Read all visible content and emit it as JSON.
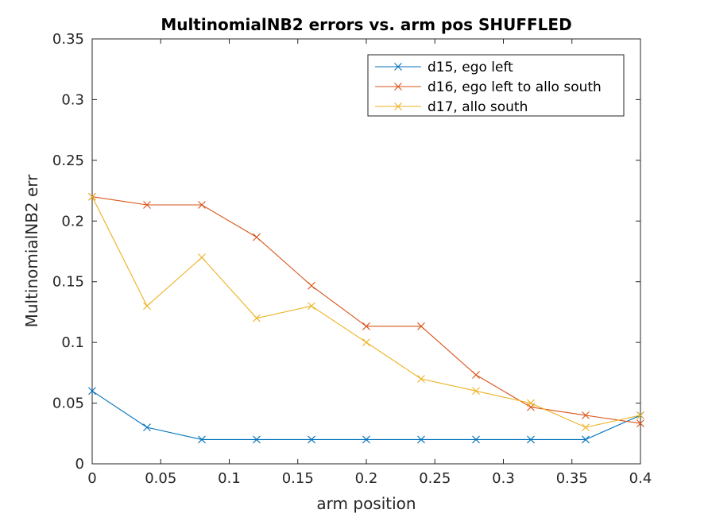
{
  "chart_data": {
    "type": "line",
    "title": "MultinomialNB2 errors vs. arm pos SHUFFLED",
    "xlabel": "arm position",
    "ylabel": "MultinomialNB2 err",
    "xlim": [
      0,
      0.4
    ],
    "ylim": [
      0,
      0.35
    ],
    "xticks": [
      0,
      0.05,
      0.1,
      0.15,
      0.2,
      0.25,
      0.3,
      0.35,
      0.4
    ],
    "xtick_labels": [
      "0",
      "0.05",
      "0.1",
      "0.15",
      "0.2",
      "0.25",
      "0.3",
      "0.35",
      "0.4"
    ],
    "yticks": [
      0,
      0.05,
      0.1,
      0.15,
      0.2,
      0.25,
      0.3,
      0.35
    ],
    "ytick_labels": [
      "0",
      "0.05",
      "0.1",
      "0.15",
      "0.2",
      "0.25",
      "0.3",
      "0.35"
    ],
    "grid": false,
    "legend_position": "top-right",
    "marker": "x",
    "x": [
      0,
      0.04,
      0.08,
      0.12,
      0.16,
      0.2,
      0.24,
      0.28,
      0.32,
      0.36,
      0.4
    ],
    "series": [
      {
        "name": "d15, ego left",
        "color": "#0072BD",
        "values": [
          0.06,
          0.03,
          0.02,
          0.02,
          0.02,
          0.02,
          0.02,
          0.02,
          0.02,
          0.02,
          0.04
        ]
      },
      {
        "name": "d16, ego left to allo south",
        "color": "#D95319",
        "values": [
          0.22,
          0.2133,
          0.2133,
          0.1867,
          0.1467,
          0.1133,
          0.1133,
          0.0733,
          0.0467,
          0.04,
          0.0333
        ]
      },
      {
        "name": "d17, allo south",
        "color": "#EDB120",
        "values": [
          0.22,
          0.13,
          0.17,
          0.12,
          0.13,
          0.1,
          0.07,
          0.06,
          0.05,
          0.03,
          0.04
        ]
      }
    ]
  }
}
